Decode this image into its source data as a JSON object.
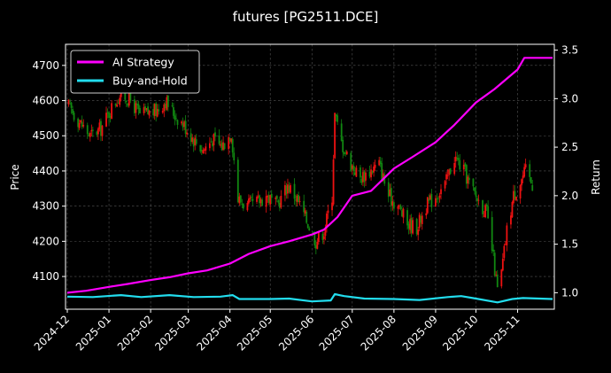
{
  "chart_data": {
    "type": "line",
    "title": "futures [PG2511.DCE]",
    "left_axis": {
      "label": "Price",
      "ticks": [
        4100,
        4200,
        4300,
        4400,
        4500,
        4600,
        4700
      ],
      "range": [
        4007,
        4760
      ]
    },
    "right_axis": {
      "label": "Return",
      "ticks": [
        1.0,
        1.5,
        2.0,
        2.5,
        3.0,
        3.5
      ],
      "range": [
        0.83,
        3.56
      ]
    },
    "x_axis": {
      "ticks": [
        "2024-12",
        "2025-01",
        "2025-02",
        "2025-03",
        "2025-04",
        "2025-05",
        "2025-06",
        "2025-07",
        "2025-08",
        "2025-09",
        "2025-10",
        "2025-11"
      ],
      "start": "2024-12-01",
      "end": "2025-11-27"
    },
    "legend": {
      "position": "top-left",
      "entries": [
        {
          "name": "AI Strategy",
          "color": "#ff00ff"
        },
        {
          "name": "Buy-and-Hold",
          "color": "#22ddee"
        }
      ]
    },
    "grid": true,
    "candlestick_colors": {
      "up": "#ee1111",
      "down": "#118811"
    },
    "price_path": [
      [
        "2024-12-02",
        4585
      ],
      [
        "2024-12-10",
        4540
      ],
      [
        "2024-12-18",
        4500
      ],
      [
        "2024-12-26",
        4520
      ],
      [
        "2025-01-03",
        4580
      ],
      [
        "2025-01-10",
        4620
      ],
      [
        "2025-01-17",
        4600
      ],
      [
        "2025-01-24",
        4560
      ],
      [
        "2025-02-05",
        4570
      ],
      [
        "2025-02-12",
        4600
      ],
      [
        "2025-02-19",
        4560
      ],
      [
        "2025-02-26",
        4530
      ],
      [
        "2025-03-05",
        4490
      ],
      [
        "2025-03-12",
        4460
      ],
      [
        "2025-03-19",
        4490
      ],
      [
        "2025-03-26",
        4470
      ],
      [
        "2025-04-02",
        4510
      ],
      [
        "2025-04-07",
        4320
      ],
      [
        "2025-04-14",
        4300
      ],
      [
        "2025-04-21",
        4310
      ],
      [
        "2025-04-28",
        4330
      ],
      [
        "2025-05-06",
        4300
      ],
      [
        "2025-05-14",
        4360
      ],
      [
        "2025-05-21",
        4320
      ],
      [
        "2025-05-28",
        4260
      ],
      [
        "2025-06-04",
        4200
      ],
      [
        "2025-06-10",
        4230
      ],
      [
        "2025-06-16",
        4330
      ],
      [
        "2025-06-18",
        4560
      ],
      [
        "2025-06-23",
        4480
      ],
      [
        "2025-06-30",
        4420
      ],
      [
        "2025-07-07",
        4380
      ],
      [
        "2025-07-14",
        4400
      ],
      [
        "2025-07-21",
        4420
      ],
      [
        "2025-07-28",
        4330
      ],
      [
        "2025-08-04",
        4300
      ],
      [
        "2025-08-11",
        4250
      ],
      [
        "2025-08-18",
        4240
      ],
      [
        "2025-08-25",
        4300
      ],
      [
        "2025-09-01",
        4330
      ],
      [
        "2025-09-08",
        4360
      ],
      [
        "2025-09-15",
        4440
      ],
      [
        "2025-09-22",
        4400
      ],
      [
        "2025-09-29",
        4340
      ],
      [
        "2025-10-09",
        4280
      ],
      [
        "2025-10-14",
        4150
      ],
      [
        "2025-10-17",
        4060
      ],
      [
        "2025-10-20",
        4110
      ],
      [
        "2025-10-24",
        4230
      ],
      [
        "2025-10-29",
        4330
      ],
      [
        "2025-11-03",
        4370
      ],
      [
        "2025-11-07",
        4400
      ],
      [
        "2025-11-12",
        4360
      ]
    ],
    "series": [
      {
        "name": "AI Strategy",
        "axis": "right",
        "color": "#ff00ff",
        "points": [
          [
            "2024-12-01",
            1.0
          ],
          [
            "2024-12-15",
            1.02
          ],
          [
            "2025-01-01",
            1.06
          ],
          [
            "2025-01-15",
            1.09
          ],
          [
            "2025-02-01",
            1.13
          ],
          [
            "2025-02-15",
            1.16
          ],
          [
            "2025-03-01",
            1.2
          ],
          [
            "2025-03-15",
            1.23
          ],
          [
            "2025-04-01",
            1.3
          ],
          [
            "2025-04-15",
            1.4
          ],
          [
            "2025-05-01",
            1.48
          ],
          [
            "2025-05-15",
            1.53
          ],
          [
            "2025-06-01",
            1.6
          ],
          [
            "2025-06-10",
            1.65
          ],
          [
            "2025-06-20",
            1.78
          ],
          [
            "2025-07-01",
            2.0
          ],
          [
            "2025-07-15",
            2.05
          ],
          [
            "2025-08-01",
            2.28
          ],
          [
            "2025-08-15",
            2.4
          ],
          [
            "2025-09-01",
            2.55
          ],
          [
            "2025-09-15",
            2.73
          ],
          [
            "2025-10-01",
            2.96
          ],
          [
            "2025-10-15",
            3.1
          ],
          [
            "2025-11-01",
            3.3
          ],
          [
            "2025-11-06",
            3.42
          ],
          [
            "2025-11-27",
            3.42
          ]
        ]
      },
      {
        "name": "Buy-and-Hold",
        "axis": "right",
        "color": "#22ddee",
        "points": [
          [
            "2024-12-01",
            0.96
          ],
          [
            "2024-12-20",
            0.955
          ],
          [
            "2025-01-10",
            0.975
          ],
          [
            "2025-01-25",
            0.955
          ],
          [
            "2025-02-15",
            0.975
          ],
          [
            "2025-03-05",
            0.955
          ],
          [
            "2025-03-25",
            0.96
          ],
          [
            "2025-04-03",
            0.975
          ],
          [
            "2025-04-08",
            0.935
          ],
          [
            "2025-05-01",
            0.935
          ],
          [
            "2025-05-15",
            0.94
          ],
          [
            "2025-06-01",
            0.91
          ],
          [
            "2025-06-15",
            0.92
          ],
          [
            "2025-06-18",
            0.985
          ],
          [
            "2025-06-25",
            0.965
          ],
          [
            "2025-07-10",
            0.94
          ],
          [
            "2025-08-01",
            0.935
          ],
          [
            "2025-08-20",
            0.925
          ],
          [
            "2025-09-10",
            0.955
          ],
          [
            "2025-09-20",
            0.965
          ],
          [
            "2025-10-01",
            0.94
          ],
          [
            "2025-10-17",
            0.9
          ],
          [
            "2025-10-28",
            0.935
          ],
          [
            "2025-11-05",
            0.945
          ],
          [
            "2025-11-27",
            0.935
          ]
        ]
      }
    ]
  }
}
